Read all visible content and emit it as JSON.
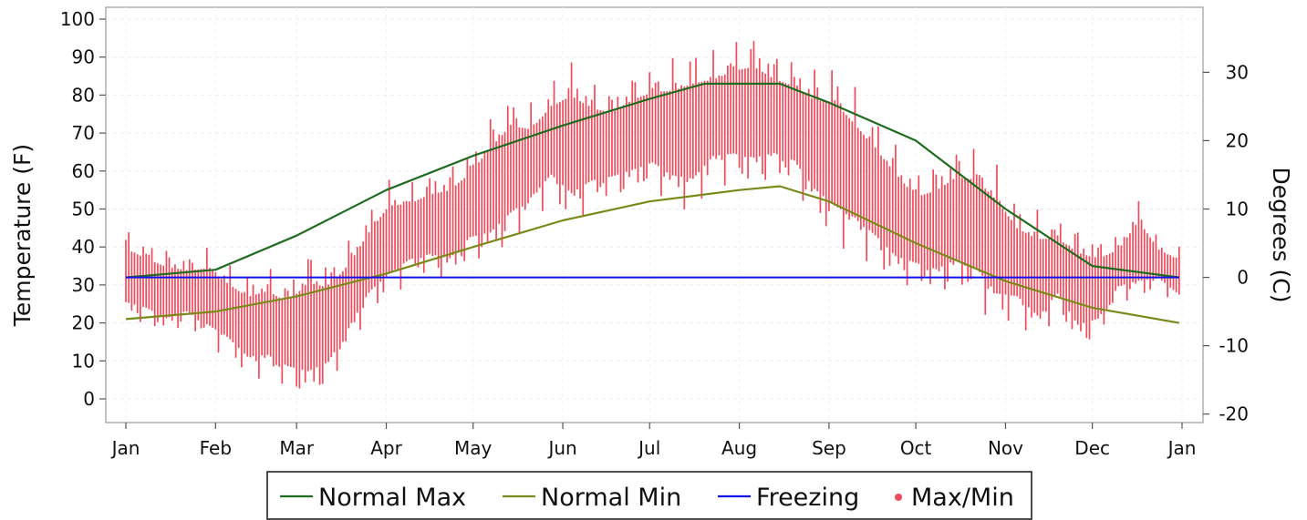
{
  "chart_data": {
    "type": "line",
    "ylabel": "Temperature (F)",
    "ylabel_right": "Degrees (C)",
    "ylim": [
      -6,
      102
    ],
    "y_ticks": [
      0,
      10,
      20,
      30,
      40,
      50,
      60,
      70,
      80,
      90,
      100
    ],
    "y_ticks_right": [
      -20,
      -10,
      0,
      10,
      20,
      30
    ],
    "x_ticks": [
      "Jan",
      "Feb",
      "Mar",
      "Apr",
      "May",
      "Jun",
      "Jul",
      "Aug",
      "Sep",
      "Oct",
      "Nov",
      "Dec",
      "Jan"
    ],
    "grid": true,
    "legend": "bottom",
    "series": [
      {
        "name": "Normal Max",
        "color": "#1f6b1f",
        "x": [
          "Jan 1",
          "Feb 1",
          "Mar 1",
          "Apr 1",
          "May 1",
          "Jun 1",
          "Jul 1",
          "Jul 20",
          "Aug 15",
          "Sep 1",
          "Oct 1",
          "Nov 1",
          "Dec 1",
          "Dec 31"
        ],
        "values": [
          32,
          34,
          43,
          55,
          64,
          72,
          79,
          83,
          83,
          78,
          68,
          50,
          35,
          32
        ]
      },
      {
        "name": "Normal Min",
        "color": "#7a8a1a",
        "x": [
          "Jan 1",
          "Feb 1",
          "Mar 1",
          "Apr 1",
          "May 1",
          "Jun 1",
          "Jul 1",
          "Aug 1",
          "Aug 15",
          "Sep 1",
          "Oct 1",
          "Nov 1",
          "Dec 1",
          "Dec 31"
        ],
        "values": [
          21,
          23,
          27,
          33,
          40,
          47,
          52,
          55,
          56,
          52,
          41,
          31,
          24,
          20
        ]
      },
      {
        "name": "Freezing",
        "color": "#1010ee",
        "x": [
          "Jan 1",
          "Dec 31"
        ],
        "values": [
          32,
          32
        ]
      },
      {
        "name": "Max/Min",
        "color": "#f24a5a",
        "type": "range",
        "x": [
          "Jan 1",
          "Jan 8",
          "Jan 15",
          "Jan 22",
          "Jan 29",
          "Feb 5",
          "Feb 12",
          "Feb 19",
          "Feb 26",
          "Mar 5",
          "Mar 12",
          "Mar 19",
          "Mar 26",
          "Apr 2",
          "Apr 9",
          "Apr 16",
          "Apr 23",
          "Apr 30",
          "May 7",
          "May 14",
          "May 21",
          "May 28",
          "Jun 4",
          "Jun 11",
          "Jun 18",
          "Jun 25",
          "Jul 2",
          "Jul 9",
          "Jul 16",
          "Jul 23",
          "Jul 30",
          "Aug 6",
          "Aug 13",
          "Aug 20",
          "Aug 27",
          "Sep 3",
          "Sep 10",
          "Sep 17",
          "Sep 24",
          "Oct 1",
          "Oct 8",
          "Oct 15",
          "Oct 22",
          "Oct 29",
          "Nov 5",
          "Nov 12",
          "Nov 19",
          "Nov 26",
          "Dec 3",
          "Dec 10",
          "Dec 17",
          "Dec 24",
          "Dec 31"
        ],
        "high": [
          45,
          42,
          40,
          38,
          40,
          36,
          33,
          35,
          32,
          40,
          37,
          42,
          50,
          58,
          57,
          60,
          62,
          66,
          75,
          81,
          78,
          84,
          90,
          84,
          82,
          86,
          88,
          90,
          93,
          92,
          95,
          97,
          92,
          90,
          88,
          89,
          82,
          75,
          68,
          60,
          63,
          67,
          67,
          62,
          52,
          50,
          48,
          46,
          43,
          43,
          53,
          42,
          40
        ],
        "low": [
          20,
          19,
          16,
          19,
          14,
          11,
          5,
          5,
          2,
          -2,
          2,
          12,
          22,
          26,
          31,
          32,
          30,
          36,
          35,
          40,
          46,
          52,
          44,
          50,
          52,
          53,
          55,
          50,
          48,
          56,
          56,
          54,
          57,
          55,
          46,
          40,
          38,
          34,
          29,
          29,
          26,
          28,
          25,
          18,
          20,
          14,
          22,
          12,
          15,
          26,
          25,
          29,
          24
        ]
      }
    ]
  }
}
